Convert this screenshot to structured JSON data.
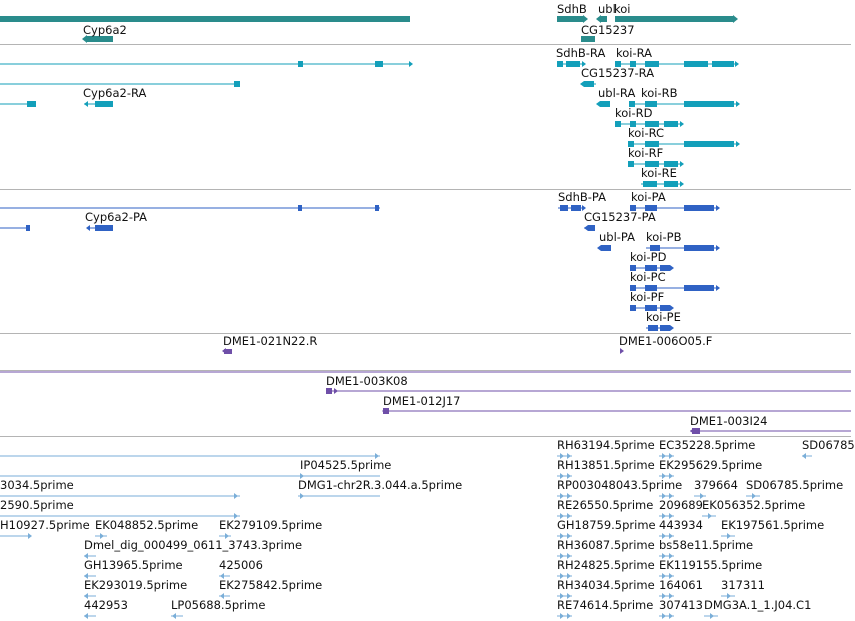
{
  "colors": {
    "gene": "#2a8c8c",
    "transcript_rna": "#139fba",
    "transcript_protein": "#2f62c4",
    "clone_end": "#6f4fa8",
    "est": "#7aaed8"
  },
  "tracks": {
    "genes": {
      "labels": [
        "SdhB",
        "ubl",
        "koi",
        "Cyp6a2",
        "CG15237"
      ]
    },
    "transcripts_rna": {
      "labels": [
        "SdhB-RA",
        "koi-RA",
        "CG15237-RA",
        "Cyp6a2-RA",
        "ubl-RA",
        "koi-RB",
        "koi-RD",
        "koi-RC",
        "koi-RF",
        "koi-RE"
      ]
    },
    "transcripts_protein": {
      "labels": [
        "SdhB-PA",
        "koi-PA",
        "Cyp6a2-PA",
        "CG15237-PA",
        "ubl-PA",
        "koi-PB",
        "koi-PD",
        "koi-PC",
        "koi-PF",
        "koi-PE"
      ]
    },
    "clone_ends_a": {
      "labels": [
        "DME1-021N22.R",
        "DME1-006O05.F"
      ]
    },
    "clone_ends_b": {
      "labels": [
        "DME1-003K08",
        "DME1-012J17",
        "DME1-003I24"
      ]
    },
    "ests": {
      "labels": [
        "RH63194.5prime",
        "EC35228.5prime",
        "SD06785",
        "IP04525.5prime",
        "RH13851.5prime",
        "EK295629.5prime",
        "3034.5prime",
        "DMG1-chr2R.3.044.a.5prime",
        "RP003048043.5prime",
        "379664",
        "SD06785.5prime",
        "2590.5prime",
        "RE26550.5prime",
        "209689",
        "EK056352.5prime",
        "H10927.5prime",
        "EK048852.5prime",
        "EK279109.5prime",
        "GH18759.5prime",
        "443934",
        "EK197561.5prime",
        "Dmel_dig_000499_0611_3743.3prime",
        "RH36087.5prime",
        "bs58e11.5prime",
        "GH13965.5prime",
        "425006",
        "RH24825.5prime",
        "EK119155.5prime",
        "EK293019.5prime",
        "EK275842.5prime",
        "RH34034.5prime",
        "164061",
        "317311",
        "442953",
        "LP05688.5prime",
        "RE74614.5prime",
        "307413",
        "DMG3A.1_1.J04.C1"
      ]
    }
  }
}
